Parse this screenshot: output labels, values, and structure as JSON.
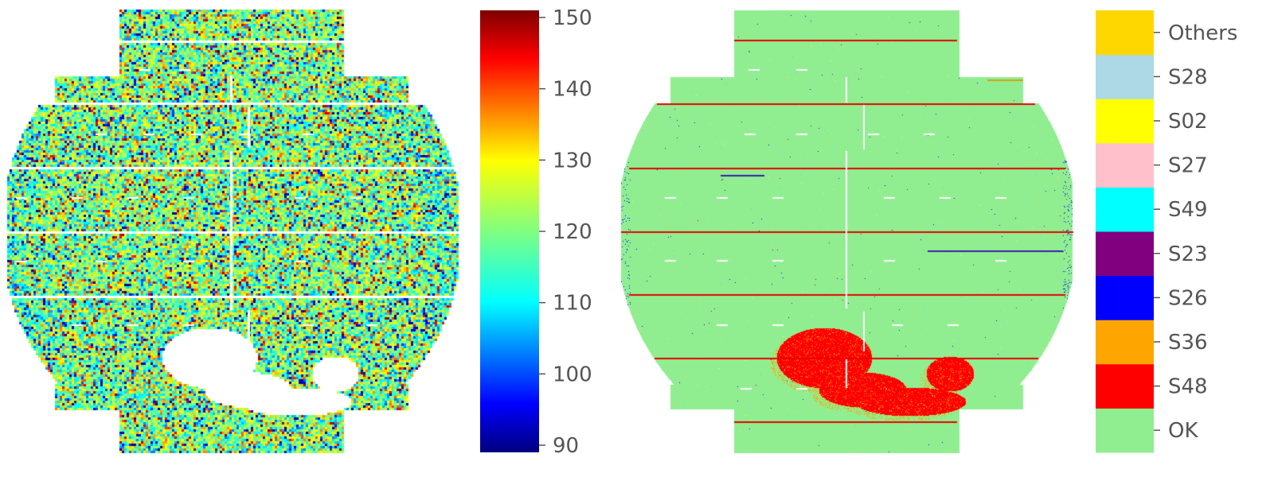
{
  "chart_data": [
    {
      "type": "heatmap",
      "title": "",
      "xlabel": "",
      "ylabel": "",
      "colormap": "jet",
      "value_range": [
        89,
        151
      ],
      "typical_value": 120,
      "missing_region": "lower-center",
      "colorbar": {
        "ticks": [
          90,
          100,
          110,
          120,
          130,
          140,
          150
        ],
        "tick_labels": [
          "90",
          "100",
          "110",
          "120",
          "130",
          "140",
          "150"
        ]
      }
    },
    {
      "type": "heatmap",
      "title": "",
      "xlabel": "",
      "ylabel": "",
      "categories": [
        "OK",
        "S48",
        "S36",
        "S26",
        "S23",
        "S49",
        "S27",
        "S02",
        "S28",
        "Others"
      ],
      "colors": [
        "#90ee90",
        "#ff0000",
        "#ffa500",
        "#0000ff",
        "#800080",
        "#00ffff",
        "#ffc0cb",
        "#ffff00",
        "#add8e6",
        "#ffd700"
      ],
      "dominant_category": "OK",
      "cluster_category": "S48",
      "cluster_region": "lower-center"
    }
  ]
}
